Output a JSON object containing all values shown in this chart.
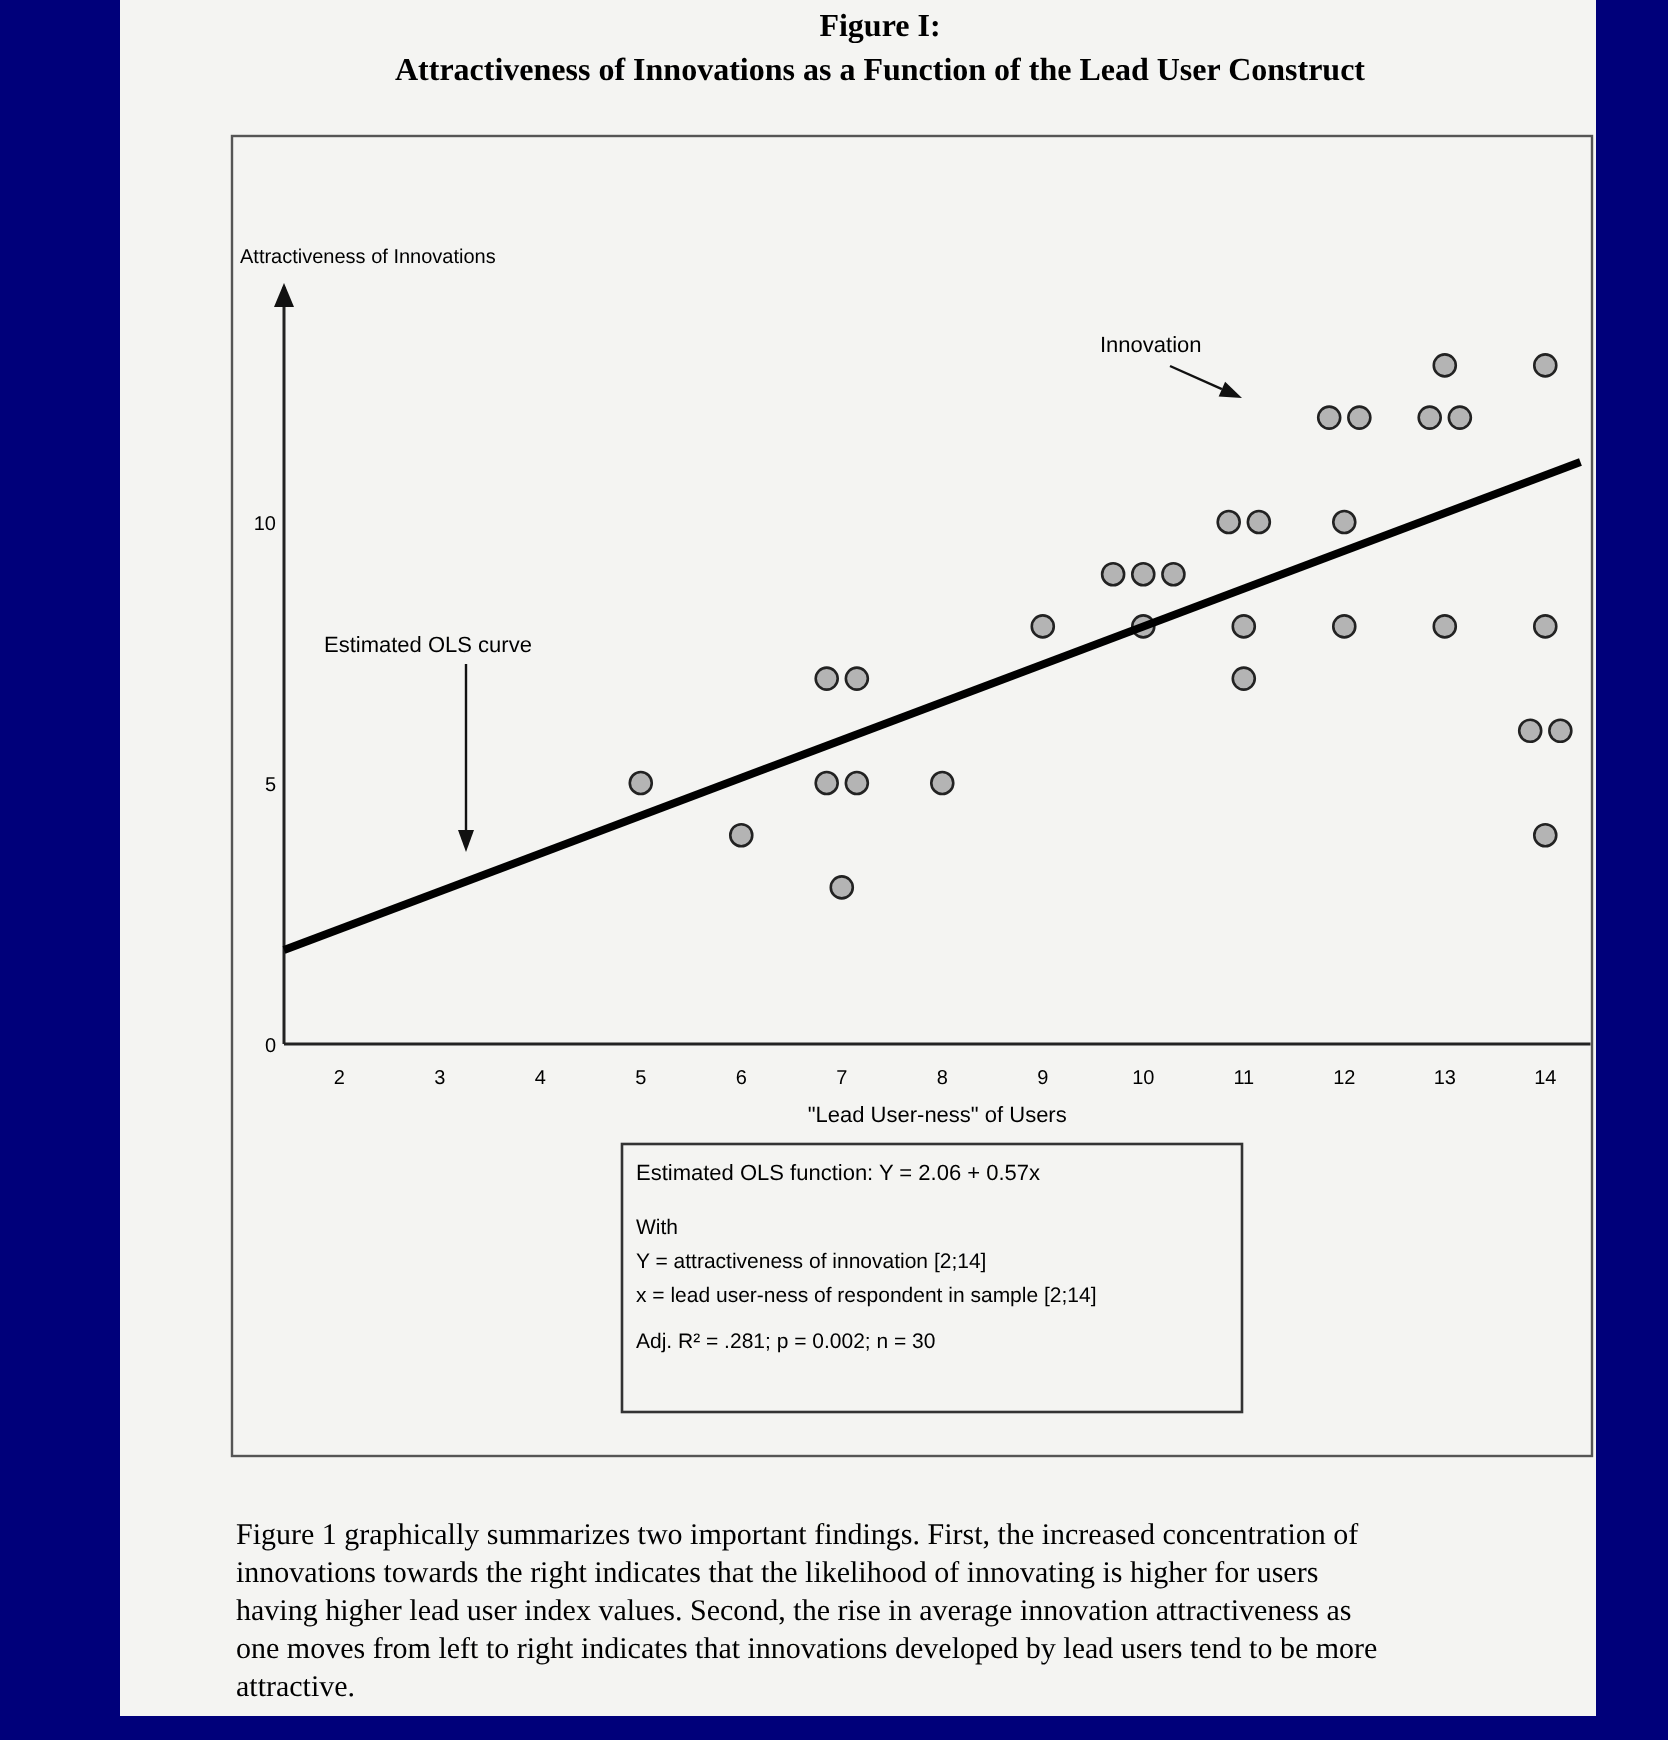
{
  "chart_data": {
    "type": "scatter",
    "title": "Figure I:",
    "subtitle": "Attractiveness of Innovations as a Function of the Lead User Construct",
    "xlabel": "\"Lead User-ness\" of Users",
    "ylabel": "Attractiveness of Innovations",
    "xlim": [
      1.45,
      14.45
    ],
    "xticks": [
      2,
      3,
      4,
      5,
      6,
      7,
      8,
      9,
      10,
      11,
      12,
      13,
      14
    ],
    "ylim": [
      0,
      14.5
    ],
    "yticks": [
      0,
      5,
      10
    ],
    "grid": false,
    "marker": "circle",
    "series": [
      {
        "color": "#b4b4b4",
        "x": [
          5,
          6,
          6.85,
          7.15,
          6.85,
          7.15,
          7,
          8,
          9,
          9.7,
          10,
          10.3,
          10,
          10.85,
          11.15,
          11,
          11,
          11.85,
          12.15,
          12,
          12,
          13,
          12.85,
          13.15,
          13,
          14,
          14,
          13.85,
          14.15,
          14
        ],
        "values": [
          5,
          4,
          7,
          7,
          5,
          5,
          3,
          5,
          8,
          9,
          9,
          9,
          8,
          10,
          10,
          8,
          7,
          12,
          12,
          10,
          8,
          13,
          12,
          12,
          8,
          13,
          8,
          6,
          6,
          4
        ]
      },
      {
        "type": "line",
        "color": "#000000",
        "line_style": "solid",
        "marker": "none",
        "x": [
          1.45,
          14.35
        ],
        "values": [
          1.8,
          11.15
        ]
      }
    ],
    "annotations": [
      "Innovation",
      "Estimated OLS curve",
      "Estimated OLS function: Y = 2.06 + 0.57x",
      "With",
      "Y = attractiveness of innovation [2;14]",
      "x = lead user-ness of respondent in sample [2;14]",
      "Adj. R² = .281; p = 0.002; n = 30",
      "Figure 1 graphically summarizes two important findings.  First, the increased concentration of innovations towards the right indicates that the likelihood of innovating is higher for users having higher lead user index values.  Second, the rise in average innovation attractiveness as one moves from left to right indicates that innovations developed by lead users tend to be more attractive."
    ]
  }
}
